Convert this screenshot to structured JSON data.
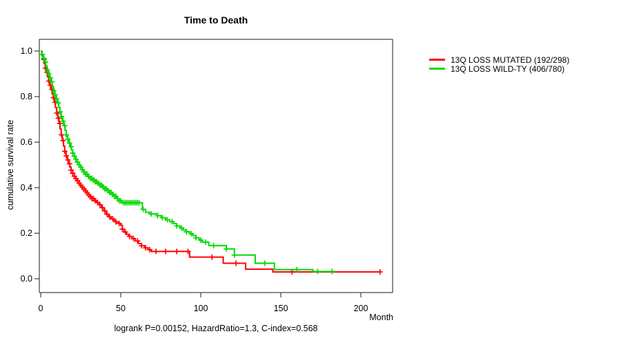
{
  "chart_data": {
    "type": "line",
    "variant": "kaplan-meier-step",
    "title": "Time to Death",
    "xlabel": "Month",
    "ylabel": "cumulative survival rate",
    "annotation": "logrank P=0.00152, HazardRatio=1.3, C-index=0.568",
    "xlim": [
      0,
      220
    ],
    "ylim": [
      0.0,
      1.0
    ],
    "x_ticks": [
      0,
      50,
      100,
      150,
      200
    ],
    "y_ticks": [
      0.0,
      0.2,
      0.4,
      0.6,
      0.8,
      1.0
    ],
    "grid": false,
    "legend_position": "outside-right",
    "series": [
      {
        "name": "13Q LOSS MUTATED",
        "label": "13Q LOSS MUTATED (192/298)",
        "events": 192,
        "n": 298,
        "color": "#ff0000",
        "steps": [
          [
            0,
            1.0
          ],
          [
            0.7,
            0.982
          ],
          [
            1.4,
            0.963
          ],
          [
            2.1,
            0.945
          ],
          [
            2.8,
            0.925
          ],
          [
            3.5,
            0.907
          ],
          [
            4.2,
            0.888
          ],
          [
            5,
            0.868
          ],
          [
            5.7,
            0.85
          ],
          [
            6.4,
            0.832
          ],
          [
            7.1,
            0.812
          ],
          [
            7.8,
            0.795
          ],
          [
            8.5,
            0.775
          ],
          [
            9.2,
            0.752
          ],
          [
            10,
            0.728
          ],
          [
            10.7,
            0.705
          ],
          [
            11.4,
            0.682
          ],
          [
            12.1,
            0.658
          ],
          [
            12.8,
            0.632
          ],
          [
            13.5,
            0.607
          ],
          [
            14.2,
            0.583
          ],
          [
            15,
            0.56
          ],
          [
            15.8,
            0.54
          ],
          [
            16.6,
            0.522
          ],
          [
            17.4,
            0.505
          ],
          [
            18.2,
            0.49
          ],
          [
            19,
            0.477
          ],
          [
            20,
            0.463
          ],
          [
            21,
            0.45
          ],
          [
            22,
            0.44
          ],
          [
            23,
            0.43
          ],
          [
            24,
            0.42
          ],
          [
            25,
            0.411
          ],
          [
            26,
            0.402
          ],
          [
            27,
            0.394
          ],
          [
            28,
            0.386
          ],
          [
            29,
            0.377
          ],
          [
            30,
            0.368
          ],
          [
            31,
            0.36
          ],
          [
            32,
            0.352
          ],
          [
            33.5,
            0.343
          ],
          [
            35,
            0.335
          ],
          [
            36.5,
            0.325
          ],
          [
            38,
            0.312
          ],
          [
            39.5,
            0.298
          ],
          [
            41,
            0.283
          ],
          [
            42.5,
            0.272
          ],
          [
            44,
            0.263
          ],
          [
            45.5,
            0.256
          ],
          [
            47,
            0.25
          ],
          [
            48.5,
            0.243
          ],
          [
            50,
            0.235
          ],
          [
            51,
            0.218
          ],
          [
            52,
            0.205
          ],
          [
            53.5,
            0.195
          ],
          [
            55,
            0.186
          ],
          [
            57,
            0.176
          ],
          [
            59,
            0.166
          ],
          [
            61,
            0.155
          ],
          [
            63,
            0.145
          ],
          [
            65,
            0.136
          ],
          [
            67,
            0.128
          ],
          [
            69,
            0.12
          ],
          [
            93,
            0.095
          ],
          [
            114,
            0.068
          ],
          [
            128,
            0.042
          ],
          [
            145,
            0.03
          ],
          [
            212,
            0.03
          ]
        ],
        "censor_months": [
          2,
          3,
          4,
          5,
          6,
          7,
          8,
          9,
          10,
          11,
          12,
          13,
          14,
          15,
          16,
          17,
          18,
          19,
          20,
          21,
          22,
          23,
          24,
          25,
          26,
          27,
          28,
          29,
          30,
          31,
          32,
          33,
          34,
          35.5,
          37,
          38.5,
          40,
          41.5,
          43,
          45,
          47,
          49,
          51,
          53,
          55.5,
          58,
          60.5,
          63,
          65.5,
          68,
          72,
          78,
          85,
          92,
          107,
          122,
          157,
          212
        ]
      },
      {
        "name": "13Q LOSS WILD-TY",
        "label": "13Q LOSS WILD-TY (406/780)",
        "events": 406,
        "n": 780,
        "color": "#00d800",
        "steps": [
          [
            0,
            1.0
          ],
          [
            0.8,
            0.985
          ],
          [
            1.6,
            0.968
          ],
          [
            2.4,
            0.952
          ],
          [
            3.2,
            0.935
          ],
          [
            4,
            0.917
          ],
          [
            4.8,
            0.9
          ],
          [
            5.6,
            0.882
          ],
          [
            6.4,
            0.865
          ],
          [
            7.2,
            0.845
          ],
          [
            8,
            0.826
          ],
          [
            8.8,
            0.808
          ],
          [
            9.6,
            0.79
          ],
          [
            10.4,
            0.772
          ],
          [
            11.2,
            0.753
          ],
          [
            12,
            0.733
          ],
          [
            12.8,
            0.712
          ],
          [
            13.6,
            0.692
          ],
          [
            14.4,
            0.672
          ],
          [
            15.2,
            0.652
          ],
          [
            16,
            0.632
          ],
          [
            16.8,
            0.613
          ],
          [
            17.6,
            0.596
          ],
          [
            18.4,
            0.58
          ],
          [
            19.2,
            0.565
          ],
          [
            20,
            0.552
          ],
          [
            21,
            0.538
          ],
          [
            22,
            0.525
          ],
          [
            23,
            0.512
          ],
          [
            24,
            0.5
          ],
          [
            25,
            0.49
          ],
          [
            26,
            0.479
          ],
          [
            27,
            0.469
          ],
          [
            28,
            0.459
          ],
          [
            29.5,
            0.449
          ],
          [
            31,
            0.441
          ],
          [
            32.5,
            0.434
          ],
          [
            34,
            0.426
          ],
          [
            35.5,
            0.419
          ],
          [
            37,
            0.411
          ],
          [
            38.5,
            0.403
          ],
          [
            40,
            0.395
          ],
          [
            41.5,
            0.387
          ],
          [
            43,
            0.379
          ],
          [
            44.5,
            0.371
          ],
          [
            46,
            0.362
          ],
          [
            47.5,
            0.352
          ],
          [
            49,
            0.342
          ],
          [
            50.5,
            0.334
          ],
          [
            63.5,
            0.305
          ],
          [
            65.5,
            0.292
          ],
          [
            68,
            0.285
          ],
          [
            73,
            0.277
          ],
          [
            75.5,
            0.268
          ],
          [
            78,
            0.259
          ],
          [
            80.5,
            0.251
          ],
          [
            83,
            0.242
          ],
          [
            85,
            0.232
          ],
          [
            87,
            0.223
          ],
          [
            89,
            0.214
          ],
          [
            91,
            0.206
          ],
          [
            93,
            0.198
          ],
          [
            95,
            0.19
          ],
          [
            97,
            0.18
          ],
          [
            99,
            0.17
          ],
          [
            101,
            0.161
          ],
          [
            105,
            0.146
          ],
          [
            116,
            0.131
          ],
          [
            121,
            0.104
          ],
          [
            134,
            0.068
          ],
          [
            146,
            0.04
          ],
          [
            170,
            0.032
          ],
          [
            183,
            0.032
          ]
        ],
        "censor_months": [
          1,
          2,
          3,
          4,
          5,
          6,
          7,
          8,
          9,
          10,
          11,
          12,
          13,
          14,
          15,
          16,
          17,
          18,
          19,
          20,
          21,
          22,
          23,
          24,
          25,
          26,
          27,
          28,
          29,
          30,
          31,
          32,
          33,
          34,
          35,
          36,
          37,
          38,
          39,
          40,
          41,
          42,
          43,
          44,
          45,
          46,
          47,
          48,
          49,
          50,
          51.5,
          52.5,
          53.5,
          54.5,
          55.5,
          56.5,
          57.5,
          58.5,
          59.5,
          60.5,
          61.5,
          64,
          69,
          73,
          76,
          79,
          82,
          85,
          88,
          91,
          94,
          97,
          100,
          103,
          108,
          116,
          121,
          140,
          160,
          173,
          182
        ]
      }
    ]
  }
}
